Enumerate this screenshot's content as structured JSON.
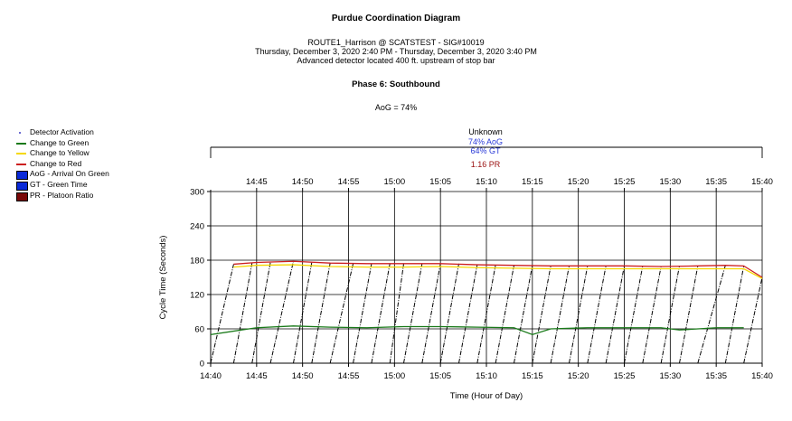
{
  "header": {
    "title": "Purdue Coordination Diagram",
    "location": "ROUTE1_Harrison @ SCATSTEST - SIG#10019",
    "period": "Thursday, December 3, 2020 2:40 PM - Thursday, December 3, 2020 3:40 PM",
    "detector_note": "Advanced detector located 400 ft. upstream of stop bar",
    "phase": "Phase 6: Southbound",
    "aog_summary": "AoG = 74%"
  },
  "legend": [
    {
      "label": "Detector Activation",
      "kind": "dot",
      "color": "#6a6ad0"
    },
    {
      "label": "Change to Green",
      "kind": "line",
      "color": "#1a7a1a"
    },
    {
      "label": "Change to Yellow",
      "kind": "line",
      "color": "#f5d800"
    },
    {
      "label": "Change to Red",
      "kind": "line",
      "color": "#cc1f1f"
    },
    {
      "label": "AoG - Arrival On Green",
      "kind": "box",
      "color": "#0a2ad8"
    },
    {
      "label": "GT - Green Time",
      "kind": "box",
      "color": "#0a2ad8"
    },
    {
      "label": "PR - Platoon Ratio",
      "kind": "box",
      "color": "#7a0808"
    }
  ],
  "plan": {
    "name": "Unknown",
    "aog": "74% AoG",
    "gt": "64% GT",
    "pr": "1.16 PR"
  },
  "chart_data": {
    "type": "line",
    "xlabel": "Time (Hour of Day)",
    "ylabel": "Cycle Time (Seconds)",
    "x_ticks": [
      "14:40",
      "14:45",
      "14:50",
      "14:55",
      "15:00",
      "15:05",
      "15:10",
      "15:15",
      "15:20",
      "15:25",
      "15:30",
      "15:35",
      "15:40"
    ],
    "top_x_ticks": [
      "14:45",
      "14:50",
      "14:55",
      "15:00",
      "15:05",
      "15:10",
      "15:15",
      "15:20",
      "15:25",
      "15:30",
      "15:35",
      "15:40"
    ],
    "ylim": [
      0,
      300
    ],
    "y_ticks": [
      0,
      60,
      120,
      180,
      240,
      300
    ],
    "grid": true,
    "series": [
      {
        "name": "Change to Red",
        "color": "#cc1f1f",
        "points": [
          [
            "14:42:30",
            173
          ],
          [
            "14:45",
            176
          ],
          [
            "14:49",
            178
          ],
          [
            "14:53",
            175
          ],
          [
            "14:57",
            174
          ],
          [
            "15:01",
            174
          ],
          [
            "15:05",
            174
          ],
          [
            "15:09",
            172
          ],
          [
            "15:13",
            171
          ],
          [
            "15:17",
            170
          ],
          [
            "15:21",
            170
          ],
          [
            "15:25",
            170
          ],
          [
            "15:29",
            169
          ],
          [
            "15:33",
            170
          ],
          [
            "15:36",
            171
          ],
          [
            "15:38",
            170
          ],
          [
            "15:40",
            150
          ]
        ]
      },
      {
        "name": "Change to Yellow",
        "color": "#f5d800",
        "points": [
          [
            "14:42:30",
            168
          ],
          [
            "14:45",
            171
          ],
          [
            "14:49",
            172
          ],
          [
            "14:53",
            169
          ],
          [
            "14:57",
            168
          ],
          [
            "15:01",
            168
          ],
          [
            "15:05",
            169
          ],
          [
            "15:09",
            167
          ],
          [
            "15:13",
            166
          ],
          [
            "15:17",
            165
          ],
          [
            "15:21",
            165
          ],
          [
            "15:25",
            165
          ],
          [
            "15:29",
            165
          ],
          [
            "15:33",
            165
          ],
          [
            "15:36",
            165
          ],
          [
            "15:38",
            165
          ],
          [
            "15:40",
            148
          ]
        ]
      },
      {
        "name": "Change to Green",
        "color": "#1a7a1a",
        "points": [
          [
            "14:40",
            50
          ],
          [
            "14:45",
            62
          ],
          [
            "14:49",
            65
          ],
          [
            "14:53",
            63
          ],
          [
            "14:57",
            62
          ],
          [
            "15:01",
            64
          ],
          [
            "15:05",
            64
          ],
          [
            "15:09",
            63
          ],
          [
            "15:13",
            62
          ],
          [
            "15:15",
            50
          ],
          [
            "15:17",
            60
          ],
          [
            "15:21",
            62
          ],
          [
            "15:25",
            62
          ],
          [
            "15:29",
            62
          ],
          [
            "15:31",
            58
          ],
          [
            "15:35",
            62
          ],
          [
            "15:38",
            62
          ]
        ]
      },
      {
        "name": "Detector Activation",
        "color": "#000000",
        "cycles": [
          [
            "14:40",
            0
          ],
          [
            "14:42:30",
            173
          ],
          [
            "14:44:30",
            175
          ],
          [
            "14:46:30",
            176
          ],
          [
            "14:49",
            178
          ],
          [
            "14:51",
            176
          ],
          [
            "14:53",
            175
          ],
          [
            "14:55:30",
            174
          ],
          [
            "14:57:30",
            174
          ],
          [
            "14:59:30",
            174
          ],
          [
            "15:01",
            174
          ],
          [
            "15:03",
            174
          ],
          [
            "15:05",
            174
          ],
          [
            "15:07",
            174
          ],
          [
            "15:09",
            172
          ],
          [
            "15:11",
            172
          ],
          [
            "15:13",
            171
          ],
          [
            "15:15",
            171
          ],
          [
            "15:17",
            170
          ],
          [
            "15:19",
            170
          ],
          [
            "15:21",
            170
          ],
          [
            "15:23",
            170
          ],
          [
            "15:25",
            170
          ],
          [
            "15:27",
            170
          ],
          [
            "15:29",
            169
          ],
          [
            "15:31",
            170
          ],
          [
            "15:33",
            170
          ],
          [
            "15:36",
            171
          ],
          [
            "15:38",
            170
          ],
          [
            "15:40",
            150
          ]
        ]
      }
    ]
  }
}
